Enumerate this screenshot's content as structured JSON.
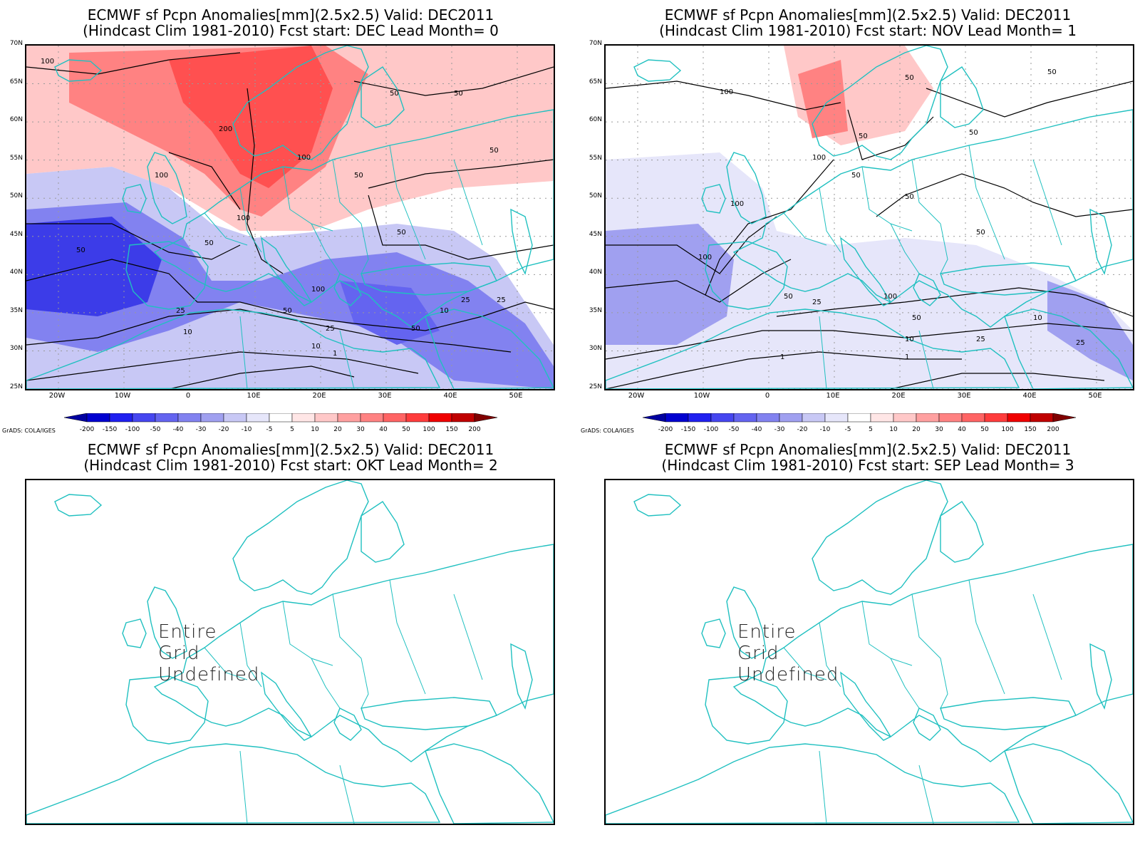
{
  "panels": [
    {
      "title_line1": "ECMWF sf Pcpn Anomalies[mm](2.5x2.5) Valid: DEC2011",
      "title_line2": "(Hindcast Clim 1981-2010) Fcst start: DEC  Lead Month= 0",
      "has_data": true,
      "contour_labels": [
        "100",
        "50",
        "50",
        "200",
        "100",
        "50",
        "100",
        "50",
        "100",
        "50",
        "50",
        "50",
        "100",
        "25",
        "10",
        "50",
        "25",
        "10",
        "50",
        "1",
        "25",
        "25",
        "10"
      ]
    },
    {
      "title_line1": "ECMWF sf Pcpn Anomalies[mm](2.5x2.5) Valid: DEC2011",
      "title_line2": "(Hindcast Clim 1981-2010) Fcst start: NOV  Lead Month= 1",
      "has_data": true,
      "contour_labels": [
        "100",
        "50",
        "50",
        "50",
        "100",
        "50",
        "50",
        "100",
        "100",
        "50",
        "50",
        "25",
        "50",
        "100",
        "10",
        "25",
        "10",
        "25",
        "50",
        "1",
        "1"
      ]
    },
    {
      "title_line1": "ECMWF sf Pcpn Anomalies[mm](2.5x2.5) Valid: DEC2011",
      "title_line2": "(Hindcast Clim 1981-2010) Fcst start: OKT  Lead Month= 2",
      "has_data": false,
      "undefined_text": "Entire Grid Undefined"
    },
    {
      "title_line1": "ECMWF sf Pcpn Anomalies[mm](2.5x2.5) Valid: DEC2011",
      "title_line2": "(Hindcast Clim 1981-2010) Fcst start: SEP  Lead Month= 3",
      "has_data": false,
      "undefined_text": "Entire Grid Undefined"
    }
  ],
  "axes": {
    "lat_labels": [
      "70N",
      "65N",
      "60N",
      "55N",
      "50N",
      "45N",
      "40N",
      "35N",
      "30N",
      "25N"
    ],
    "lon_labels": [
      "20W",
      "10W",
      "0",
      "10E",
      "20E",
      "30E",
      "40E",
      "50E"
    ]
  },
  "colorbar": {
    "labels": [
      "-200",
      "-150",
      "-100",
      "-50",
      "-40",
      "-30",
      "-20",
      "-10",
      "-5",
      "5",
      "10",
      "20",
      "30",
      "40",
      "50",
      "100",
      "150",
      "200"
    ],
    "colors": [
      "#0000a0",
      "#0000d0",
      "#2020f0",
      "#4646f0",
      "#6464f0",
      "#8282f0",
      "#a0a0f0",
      "#c8c8f5",
      "#e6e6fa",
      "#ffffff",
      "#ffe6e6",
      "#ffc8c8",
      "#ffa0a0",
      "#ff8282",
      "#ff6464",
      "#ff3c3c",
      "#f00000",
      "#c00000",
      "#800000"
    ]
  },
  "grads_credit": "GrADS: COLA/IGES",
  "colors": {
    "coast": "#20c0c0",
    "contour": "#000000"
  }
}
